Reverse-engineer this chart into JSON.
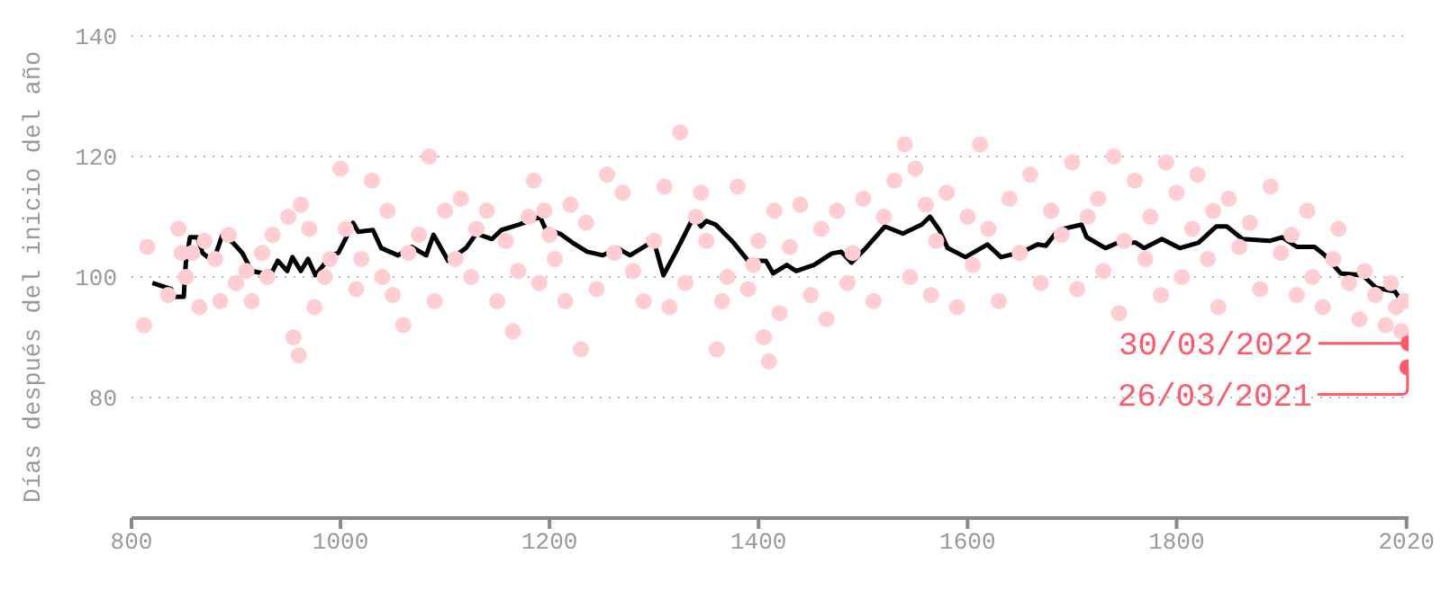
{
  "chart_data": {
    "type": "scatter",
    "ylabel": "Días después del inicio del año",
    "xlim": [
      800,
      2022
    ],
    "xticks": [
      800,
      1000,
      1200,
      1400,
      1600,
      1800,
      2020
    ],
    "ylim": [
      60,
      140
    ],
    "yticks": [
      80,
      100,
      120,
      140
    ],
    "grid": "y",
    "marker": "circle",
    "series": [
      {
        "color": "#ffcdd2",
        "x": [
          812,
          815,
          835,
          845,
          848,
          852,
          858,
          865,
          870,
          880,
          885,
          893,
          900,
          910,
          915,
          925,
          930,
          935,
          950,
          955,
          960,
          962,
          970,
          975,
          985,
          990,
          1000,
          1005,
          1015,
          1020,
          1030,
          1040,
          1045,
          1050,
          1060,
          1065,
          1075,
          1085,
          1090,
          1100,
          1110,
          1115,
          1125,
          1130,
          1140,
          1150,
          1158,
          1165,
          1170,
          1180,
          1185,
          1190,
          1195,
          1200,
          1205,
          1215,
          1220,
          1230,
          1235,
          1245,
          1255,
          1262,
          1270,
          1280,
          1290,
          1300,
          1310,
          1315,
          1325,
          1330,
          1340,
          1345,
          1350,
          1360,
          1365,
          1370,
          1380,
          1390,
          1395,
          1400,
          1405,
          1410,
          1415,
          1420,
          1430,
          1440,
          1450,
          1460,
          1465,
          1475,
          1485,
          1490,
          1500,
          1510,
          1520,
          1530,
          1540,
          1545,
          1550,
          1560,
          1565,
          1570,
          1580,
          1590,
          1600,
          1605,
          1612,
          1620,
          1630,
          1640,
          1650,
          1660,
          1670,
          1680,
          1690,
          1700,
          1705,
          1715,
          1725,
          1730,
          1740,
          1745,
          1750,
          1760,
          1770,
          1775,
          1785,
          1790,
          1800,
          1805,
          1815,
          1820,
          1830,
          1835,
          1840,
          1850,
          1860,
          1870,
          1880,
          1890,
          1900,
          1910,
          1915,
          1925,
          1930,
          1940,
          1950,
          1955,
          1965,
          1975,
          1980,
          1990,
          2000,
          2005,
          2010,
          2015,
          2018
        ],
        "values": [
          92,
          105,
          97,
          108,
          104,
          100,
          104,
          95,
          106,
          103,
          96,
          107,
          99,
          101,
          96,
          104,
          100,
          107,
          110,
          90,
          87,
          112,
          108,
          95,
          100,
          103,
          118,
          108,
          98,
          103,
          116,
          100,
          111,
          97,
          92,
          104,
          107,
          120,
          96,
          111,
          103,
          113,
          100,
          108,
          111,
          96,
          106,
          91,
          101,
          110,
          116,
          99,
          111,
          107,
          103,
          96,
          112,
          88,
          109,
          98,
          117,
          104,
          114,
          101,
          96,
          106,
          115,
          95,
          124,
          99,
          110,
          114,
          106,
          88,
          96,
          100,
          115,
          98,
          102,
          106,
          90,
          86,
          111,
          94,
          105,
          112,
          97,
          108,
          93,
          111,
          99,
          104,
          113,
          96,
          110,
          116,
          122,
          100,
          118,
          112,
          97,
          106,
          114,
          95,
          110,
          102,
          122,
          108,
          96,
          113,
          104,
          117,
          99,
          111,
          107,
          119,
          98,
          110,
          113,
          101,
          120,
          94,
          106,
          116,
          103,
          110,
          97,
          119,
          114,
          100,
          108,
          117,
          103,
          111,
          95,
          113,
          105,
          109,
          98,
          115,
          104,
          107,
          97,
          111,
          100,
          95,
          103,
          108,
          99,
          93,
          101,
          97,
          92,
          99,
          95,
          91,
          96
        ]
      },
      {
        "type": "line",
        "color": "#000000",
        "marker": "none",
        "x": [
          820,
          838,
          840,
          850,
          852,
          856,
          863,
          868,
          875,
          879,
          887,
          897,
          906,
          915,
          926,
          935,
          940,
          949,
          954,
          962,
          969,
          976,
          991,
          998,
          1005,
          1012,
          1017,
          1031,
          1039,
          1055,
          1068,
          1082,
          1089,
          1103,
          1120,
          1130,
          1145,
          1154,
          1171,
          1191,
          1196,
          1210,
          1222,
          1236,
          1251,
          1265,
          1277,
          1294,
          1301,
          1309,
          1321,
          1338,
          1345,
          1350,
          1359,
          1376,
          1390,
          1407,
          1414,
          1427,
          1436,
          1453,
          1470,
          1479,
          1489,
          1501,
          1521,
          1538,
          1556,
          1564,
          1573,
          1581,
          1598,
          1619,
          1632,
          1653,
          1667,
          1675,
          1684,
          1692,
          1709,
          1714,
          1732,
          1744,
          1761,
          1769,
          1786,
          1803,
          1821,
          1838,
          1848,
          1863,
          1889,
          1901,
          1915,
          1932,
          1942,
          1957,
          1978,
          1991,
          2009,
          2019
        ],
        "values": [
          99,
          98,
          96.7,
          96.7,
          102.4,
          106.6,
          106.6,
          104,
          103,
          103,
          107,
          105.7,
          104,
          101,
          100.6,
          101,
          102.7,
          101,
          103.3,
          101,
          103,
          100.3,
          103.6,
          104,
          106.4,
          109,
          107.5,
          107.8,
          104.8,
          103.6,
          105,
          103.6,
          107,
          102.7,
          104.8,
          107.2,
          106.3,
          107.8,
          108.7,
          110,
          108,
          107.2,
          105.7,
          104.2,
          103.6,
          104.8,
          103.6,
          105.4,
          105.2,
          100.3,
          104.2,
          110,
          108.4,
          109.3,
          108.7,
          105.7,
          102.7,
          102.7,
          100.6,
          102,
          101,
          102,
          103.9,
          104.2,
          102.4,
          104.5,
          108.4,
          107.2,
          108.7,
          110,
          107.8,
          104.8,
          103.3,
          105.4,
          103.3,
          104.2,
          105.4,
          105.2,
          107.2,
          108,
          108.7,
          106.6,
          104.8,
          105.7,
          105.7,
          104.8,
          106.3,
          104.8,
          105.7,
          108.4,
          108.4,
          106.3,
          106,
          106.6,
          105,
          105,
          103.6,
          100.6,
          100.3,
          98.2,
          97.6,
          95
        ]
      },
      {
        "color": "#ff5a6a",
        "x": [
          2021,
          2022
        ],
        "values": [
          85,
          89
        ]
      }
    ],
    "annotations": [
      {
        "text": "30/03/2022",
        "x": 2022,
        "y": 89
      },
      {
        "text": "26/03/2021",
        "x": 2021,
        "y": 85
      }
    ]
  }
}
